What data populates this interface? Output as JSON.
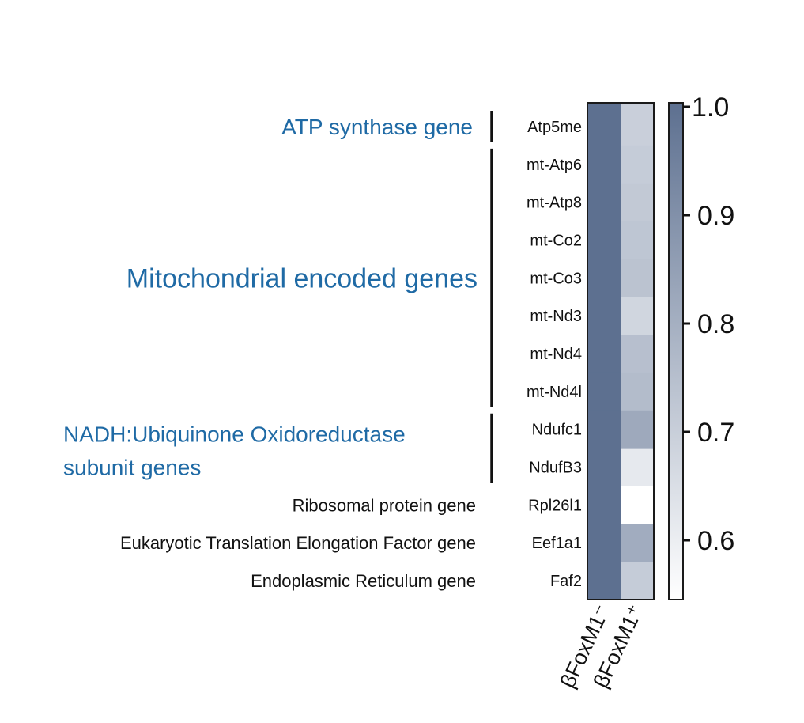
{
  "chart_data": {
    "type": "heatmap",
    "rows": [
      "Atp5me",
      "mt-Atp6",
      "mt-Atp8",
      "mt-Co2",
      "mt-Co3",
      "mt-Nd3",
      "mt-Nd4",
      "mt-Nd4l",
      "Ndufc1",
      "NdufB3",
      "Rpl26l1",
      "Eef1a1",
      "Faf2"
    ],
    "columns": [
      "βFoxM1⁻",
      "βFoxM1⁺"
    ],
    "values": [
      [
        1.0,
        0.7
      ],
      [
        1.0,
        0.71
      ],
      [
        1.0,
        0.72
      ],
      [
        1.0,
        0.73
      ],
      [
        1.0,
        0.74
      ],
      [
        1.0,
        0.68
      ],
      [
        1.0,
        0.75
      ],
      [
        1.0,
        0.76
      ],
      [
        1.0,
        0.82
      ],
      [
        1.0,
        0.62
      ],
      [
        1.0,
        0.55
      ],
      [
        1.0,
        0.81
      ],
      [
        1.0,
        0.71
      ]
    ],
    "colorbar": {
      "min": 0.55,
      "max": 1.0,
      "ticks": [
        1.0,
        0.9,
        0.8,
        0.7,
        0.6
      ],
      "tick_labels": [
        "1.0",
        "0.9",
        "0.8",
        "0.7",
        "0.6"
      ],
      "low_color": "#ffffff",
      "high_color": "#5d7090"
    },
    "groups": [
      {
        "label_lines": [
          "ATP synthase gene"
        ],
        "genes": [
          "Atp5me"
        ],
        "bracket": true,
        "style": "blue-medium"
      },
      {
        "label_lines": [
          "Mitochondrial encoded genes"
        ],
        "genes": [
          "mt-Atp6",
          "mt-Atp8",
          "mt-Co2",
          "mt-Co3",
          "mt-Nd3",
          "mt-Nd4",
          "mt-Nd4l"
        ],
        "bracket": true,
        "style": "blue-large"
      },
      {
        "label_lines": [
          "NADH:Ubiquinone Oxidoreductase",
          "subunit genes"
        ],
        "genes": [
          "Ndufc1",
          "NdufB3"
        ],
        "bracket": true,
        "style": "blue-medium"
      },
      {
        "label_lines": [
          "Ribosomal protein gene"
        ],
        "genes": [
          "Rpl26l1"
        ],
        "bracket": false,
        "style": "plain"
      },
      {
        "label_lines": [
          "Eukaryotic Translation Elongation Factor gene"
        ],
        "genes": [
          "Eef1a1"
        ],
        "bracket": false,
        "style": "plain"
      },
      {
        "label_lines": [
          "Endoplasmic Reticulum gene"
        ],
        "genes": [
          "Faf2"
        ],
        "bracket": false,
        "style": "plain"
      }
    ]
  }
}
